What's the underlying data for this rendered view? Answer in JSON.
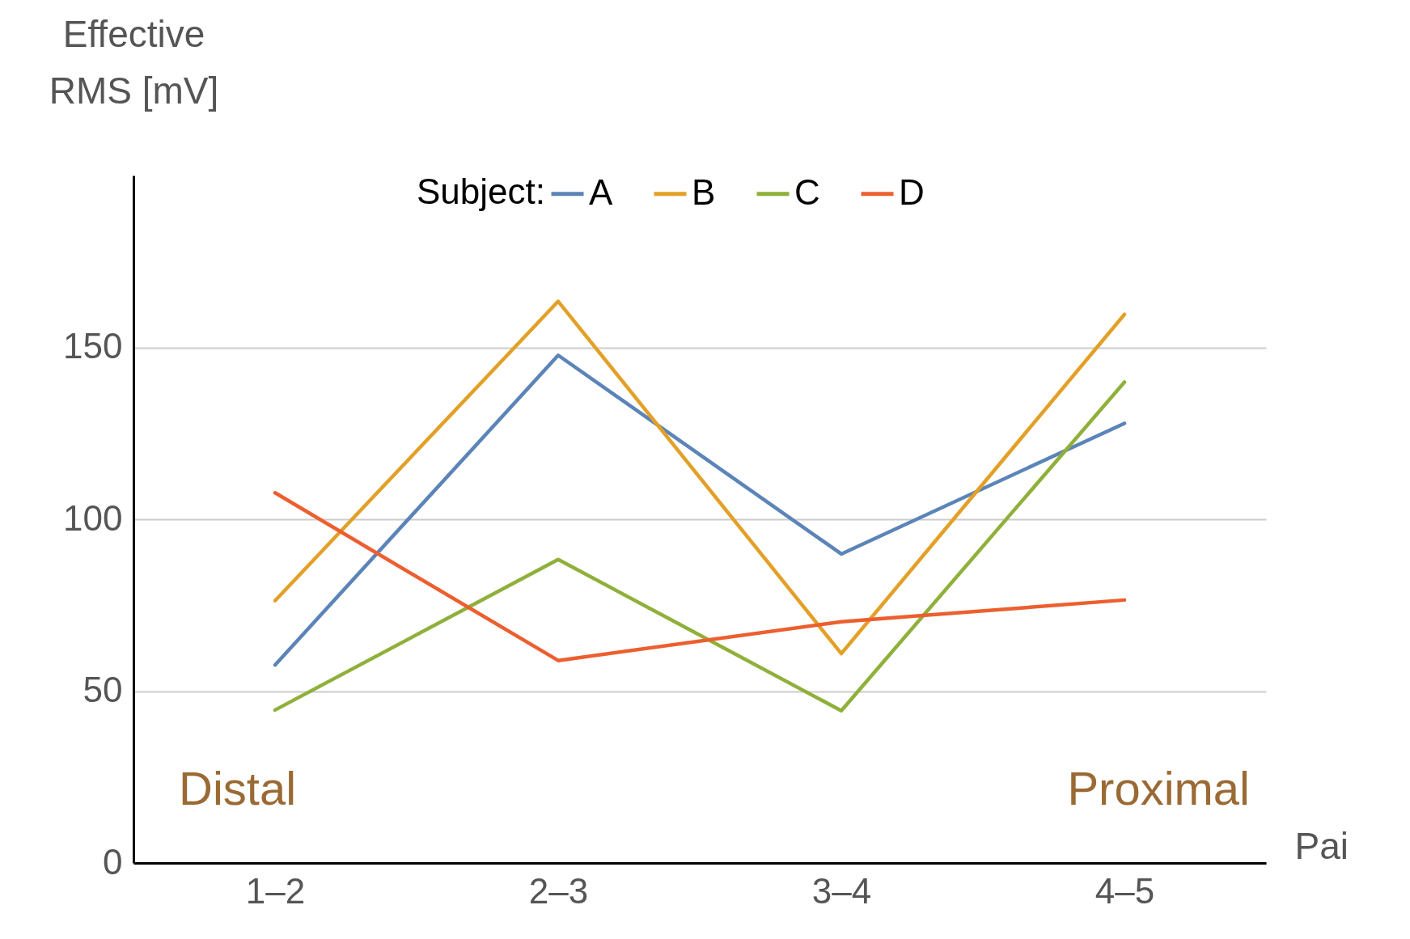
{
  "chart_data": {
    "type": "line",
    "xlabel": "Pai",
    "ylabel": "Effective RMS [mV]",
    "legend_title": "Subject:",
    "categories": [
      "1–2",
      "2–3",
      "3–4",
      "4–5"
    ],
    "series": [
      {
        "name": "A",
        "color": "#5b84b8",
        "values": [
          57.6,
          147.7,
          89.9,
          127.9
        ]
      },
      {
        "name": "B",
        "color": "#e3a028",
        "values": [
          76.3,
          163.4,
          60.9,
          159.6
        ]
      },
      {
        "name": "C",
        "color": "#8fb03a",
        "values": [
          44.5,
          88.3,
          44.3,
          139.9
        ]
      },
      {
        "name": "D",
        "color": "#ec5f2f",
        "values": [
          107.7,
          58.9,
          70.2,
          76.5
        ]
      }
    ],
    "ylim": [
      0,
      200
    ],
    "yticks": [
      0,
      50,
      100,
      150
    ],
    "grid": "y",
    "legend": "top right",
    "marker": "none",
    "line_style": "solid",
    "annotations": [
      "Distal",
      "Proximal"
    ]
  }
}
